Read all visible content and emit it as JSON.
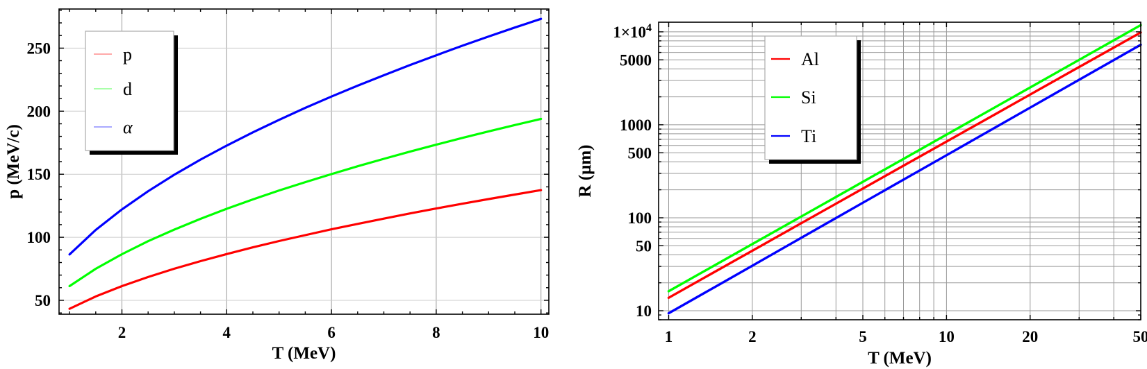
{
  "figure": {
    "background": "#ffffff",
    "description": "Two physics plots: particle momentum vs kinetic energy, and proton range in materials vs kinetic energy"
  },
  "chart_data": [
    {
      "name": "momentum-vs-kinetic-energy",
      "type": "line",
      "title": "",
      "xlabel": "T (MeV)",
      "ylabel": "p (MeV/c)",
      "xscale": "linear",
      "yscale": "linear",
      "xlim": [
        0.8,
        10.15
      ],
      "ylim": [
        39,
        281
      ],
      "grid": true,
      "grid_color_vertical": "#999999",
      "grid_color_horizontal": "#cccccc",
      "xticks": [
        {
          "v": 2,
          "label": "2"
        },
        {
          "v": 4,
          "label": "4"
        },
        {
          "v": 6,
          "label": "6"
        },
        {
          "v": 8,
          "label": "8"
        },
        {
          "v": 10,
          "label": "10"
        }
      ],
      "yticks": [
        {
          "v": 50,
          "label": "50"
        },
        {
          "v": 100,
          "label": "100"
        },
        {
          "v": 150,
          "label": "150"
        },
        {
          "v": 200,
          "label": "200"
        },
        {
          "v": 250,
          "label": "250"
        }
      ],
      "xminor_step": 0.5,
      "yminor_step": 10,
      "xgrid": [
        2,
        4,
        6,
        8,
        10
      ],
      "ygrid": [
        50,
        100,
        150,
        200,
        250
      ],
      "legend": {
        "position": "top-left",
        "items": [
          {
            "label": "p",
            "color": "#ff0000",
            "italic": false
          },
          {
            "label": "d",
            "color": "#00ff00",
            "italic": false
          },
          {
            "label": "α",
            "color": "#0000ff",
            "italic": true
          }
        ]
      },
      "series": [
        {
          "name": "p",
          "color": "#ff0000",
          "x": [
            1,
            1.5,
            2,
            2.5,
            3,
            3.5,
            4,
            4.5,
            5,
            5.5,
            6,
            6.5,
            7,
            7.5,
            8,
            8.5,
            9,
            9.5,
            10
          ],
          "y": [
            43.3,
            53.1,
            61.3,
            68.5,
            75.1,
            81.1,
            86.7,
            92.0,
            97.0,
            101.7,
            106.3,
            110.6,
            114.8,
            118.9,
            122.8,
            126.6,
            130.3,
            133.9,
            137.4
          ]
        },
        {
          "name": "d",
          "color": "#00ff00",
          "x": [
            1,
            1.5,
            2,
            2.5,
            3,
            3.5,
            4,
            4.5,
            5,
            5.5,
            6,
            6.5,
            7,
            7.5,
            8,
            8.5,
            9,
            9.5,
            10
          ],
          "y": [
            61.3,
            75.0,
            86.6,
            96.9,
            106.1,
            114.6,
            122.6,
            130.0,
            137.1,
            143.7,
            150.1,
            156.3,
            162.2,
            167.9,
            173.4,
            178.8,
            184.0,
            189.0,
            193.9
          ]
        },
        {
          "name": "α",
          "color": "#0000ff",
          "x": [
            1,
            1.5,
            2,
            2.5,
            3,
            3.5,
            4,
            4.5,
            5,
            5.5,
            6,
            6.5,
            7,
            7.5,
            8,
            8.5,
            9,
            9.5,
            10
          ],
          "y": [
            86.4,
            105.8,
            122.1,
            136.5,
            149.6,
            161.6,
            172.7,
            183.2,
            193.1,
            202.6,
            211.6,
            220.2,
            228.5,
            236.6,
            244.3,
            251.9,
            259.2,
            266.3,
            273.2
          ]
        }
      ]
    },
    {
      "name": "range-vs-kinetic-energy",
      "type": "line",
      "title": "",
      "xlabel": "T (MeV)",
      "ylabel": "R (μm)",
      "xscale": "log",
      "yscale": "log",
      "xlim": [
        0.92,
        50
      ],
      "ylim": [
        8,
        12700
      ],
      "grid": true,
      "grid_color_vertical": "#999999",
      "grid_color_horizontal": "#999999",
      "xticks": [
        {
          "v": 1,
          "label": "1"
        },
        {
          "v": 2,
          "label": "2"
        },
        {
          "v": 5,
          "label": "5"
        },
        {
          "v": 10,
          "label": "10"
        },
        {
          "v": 20,
          "label": "20"
        },
        {
          "v": 50,
          "label": "50"
        }
      ],
      "yticks": [
        {
          "v": 10,
          "label": "10"
        },
        {
          "v": 50,
          "label": "50"
        },
        {
          "v": 100,
          "label": "100"
        },
        {
          "v": 500,
          "label": "500"
        },
        {
          "v": 1000,
          "label": "1000"
        },
        {
          "v": 5000,
          "label": "5000"
        },
        {
          "v": 10000,
          "label": "1×10^4"
        }
      ],
      "xminor_step": "log",
      "yminor_step": "log",
      "xgrid": [
        1,
        2,
        3,
        4,
        5,
        6,
        7,
        8,
        9,
        10,
        20,
        30,
        40,
        50
      ],
      "ygrid": [
        10,
        20,
        30,
        40,
        50,
        60,
        70,
        80,
        90,
        100,
        200,
        300,
        400,
        500,
        600,
        700,
        800,
        900,
        1000,
        2000,
        3000,
        4000,
        5000,
        6000,
        7000,
        8000,
        9000,
        10000
      ],
      "legend": {
        "position": "top-right",
        "items": [
          {
            "label": "Al",
            "color": "#ff0000",
            "italic": false
          },
          {
            "label": "Si",
            "color": "#00ff00",
            "italic": false
          },
          {
            "label": "Ti",
            "color": "#0000ff",
            "italic": false
          }
        ]
      },
      "series": [
        {
          "name": "Al",
          "color": "#ff0000",
          "x": [
            1,
            1.5,
            2,
            3,
            4,
            5,
            7,
            10,
            15,
            20,
            30,
            40,
            50
          ],
          "y": [
            13.8,
            27.3,
            44.2,
            87.4,
            141.7,
            206,
            363,
            660,
            1305,
            2116,
            4183,
            6777,
            9853
          ]
        },
        {
          "name": "Si",
          "color": "#00ff00",
          "x": [
            1,
            1.5,
            2,
            3,
            4,
            5,
            7,
            10,
            15,
            20,
            30,
            40,
            50
          ],
          "y": [
            16.2,
            32.1,
            52.1,
            103.1,
            167.5,
            244,
            430,
            784,
            1553,
            2521,
            4996,
            8106,
            11810
          ]
        },
        {
          "name": "Ti",
          "color": "#0000ff",
          "x": [
            1,
            1.5,
            2,
            3,
            4,
            5,
            7,
            10,
            15,
            20,
            30,
            40,
            50
          ],
          "y": [
            9.4,
            18.7,
            30.5,
            60.8,
            99.2,
            145,
            257,
            471,
            939,
            1531,
            3050,
            4972,
            7264
          ]
        }
      ]
    }
  ]
}
